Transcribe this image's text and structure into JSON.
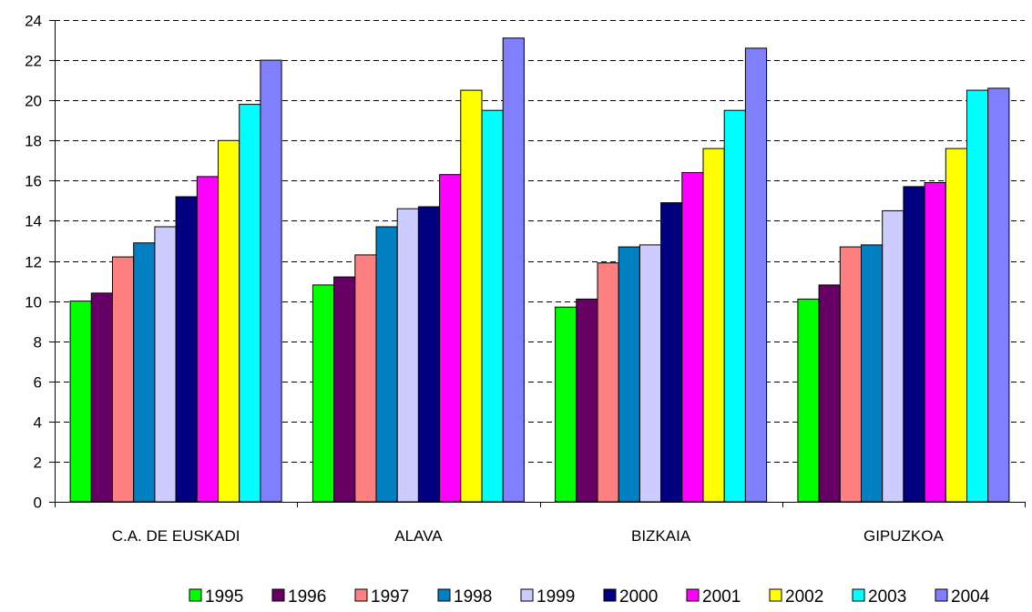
{
  "chart_data": {
    "type": "bar",
    "title": "",
    "xlabel": "",
    "ylabel": "",
    "ylim": [
      0,
      24
    ],
    "yticks": [
      0,
      2,
      4,
      6,
      8,
      10,
      12,
      14,
      16,
      18,
      20,
      22,
      24
    ],
    "grid": true,
    "legend_position": "bottom",
    "categories": [
      "C.A. DE EUSKADI",
      "ALAVA",
      "BIZKAIA",
      "GIPUZKOA"
    ],
    "series": [
      {
        "name": "1995",
        "color": "#00ff00",
        "values": [
          10.0,
          10.8,
          9.7,
          10.1
        ]
      },
      {
        "name": "1996",
        "color": "#660066",
        "values": [
          10.4,
          11.2,
          10.1,
          10.8
        ]
      },
      {
        "name": "1997",
        "color": "#ff8080",
        "values": [
          12.2,
          12.3,
          11.9,
          12.7
        ]
      },
      {
        "name": "1998",
        "color": "#0080c0",
        "values": [
          12.9,
          13.7,
          12.7,
          12.8
        ]
      },
      {
        "name": "1999",
        "color": "#ccccff",
        "values": [
          13.7,
          14.6,
          12.8,
          14.5
        ]
      },
      {
        "name": "2000",
        "color": "#000080",
        "values": [
          15.2,
          14.7,
          14.9,
          15.7
        ]
      },
      {
        "name": "2001",
        "color": "#ff00ff",
        "values": [
          16.2,
          16.3,
          16.4,
          15.9
        ]
      },
      {
        "name": "2002",
        "color": "#ffff00",
        "values": [
          18.0,
          20.5,
          17.6,
          17.6
        ]
      },
      {
        "name": "2003",
        "color": "#00ffff",
        "values": [
          19.8,
          19.5,
          19.5,
          20.5
        ]
      },
      {
        "name": "2004",
        "color": "#8080ff",
        "values": [
          22.0,
          23.1,
          22.6,
          20.6
        ]
      }
    ]
  }
}
